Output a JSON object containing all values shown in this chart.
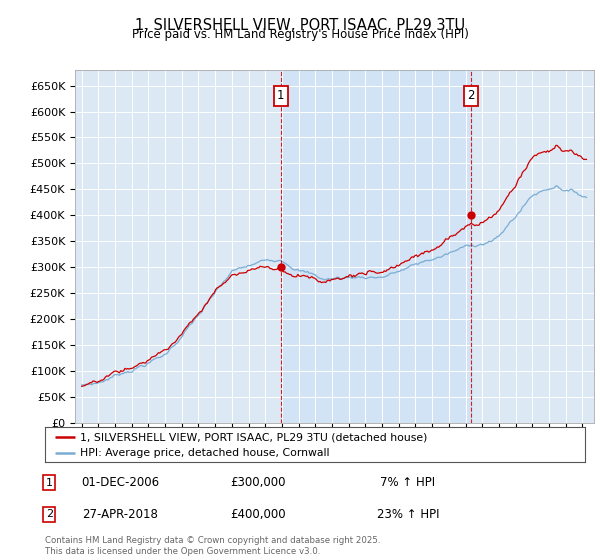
{
  "title": "1, SILVERSHELL VIEW, PORT ISAAC, PL29 3TU",
  "subtitle": "Price paid vs. HM Land Registry's House Price Index (HPI)",
  "bg_color": "#dce9f5",
  "fill_color": "#cddff0",
  "red_color": "#cc0000",
  "blue_color": "#7aadd4",
  "ylim": [
    0,
    680000
  ],
  "yticks": [
    0,
    50000,
    100000,
    150000,
    200000,
    250000,
    300000,
    350000,
    400000,
    450000,
    500000,
    550000,
    600000,
    650000
  ],
  "ytick_labels": [
    "£0",
    "£50K",
    "£100K",
    "£150K",
    "£200K",
    "£250K",
    "£300K",
    "£350K",
    "£400K",
    "£450K",
    "£500K",
    "£550K",
    "£600K",
    "£650K"
  ],
  "purchase1_year": 2006.92,
  "purchase1_price": 300000,
  "purchase1_label": "01-DEC-2006",
  "purchase1_pct": "7%",
  "purchase2_year": 2018.32,
  "purchase2_price": 400000,
  "purchase2_label": "27-APR-2018",
  "purchase2_pct": "23%",
  "legend_line1": "1, SILVERSHELL VIEW, PORT ISAAC, PL29 3TU (detached house)",
  "legend_line2": "HPI: Average price, detached house, Cornwall",
  "footnote": "Contains HM Land Registry data © Crown copyright and database right 2025.\nThis data is licensed under the Open Government Licence v3.0.",
  "marker_box_color": "#cc0000",
  "start_year": 1995,
  "end_year": 2025
}
